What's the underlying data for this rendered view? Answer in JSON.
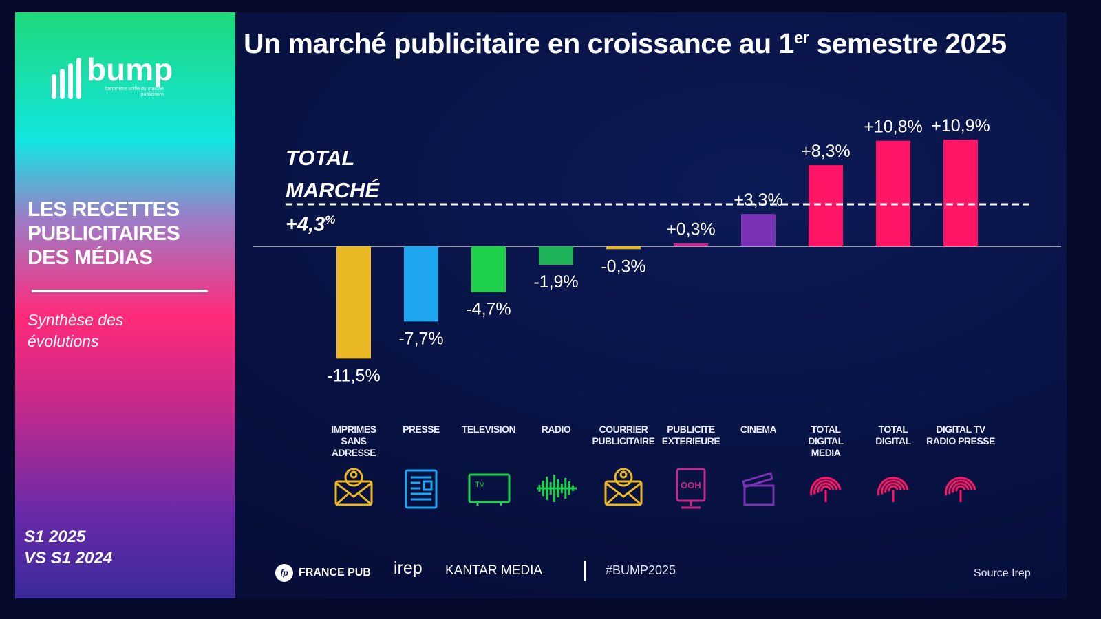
{
  "sidebar": {
    "logo_text": "bump",
    "logo_tagline": "baromètre unifié du marché publicitaire",
    "title_lines": [
      "LES RECETTES",
      "PUBLICITAIRES",
      "DES MÉDIAS"
    ],
    "subtitle": "Synthèse des évolutions",
    "period_lines": [
      "S1 2025",
      "VS S1 2024"
    ]
  },
  "title": {
    "main": "Un marché publicitaire en croissance au 1",
    "sup": "er",
    "end": " semestre 2025"
  },
  "total": {
    "label_lines": [
      "TOTAL",
      "MARCHÉ"
    ],
    "value": "+4,3",
    "unit": "%"
  },
  "chart_data": {
    "type": "bar",
    "categories": [
      "IMPRIMES SANS ADRESSE",
      "PRESSE",
      "TELEVISION",
      "RADIO",
      "COURRIER PUBLICITAIRE",
      "PUBLICITE EXTERIEURE",
      "CINEMA",
      "TOTAL DIGITAL MEDIA",
      "TOTAL DIGITAL",
      "DIGITAL TV RADIO PRESSE"
    ],
    "category_lines": [
      [
        "IMPRIMES",
        "SANS",
        "ADRESSE"
      ],
      [
        "PRESSE"
      ],
      [
        "TELEVISION"
      ],
      [
        "RADIO"
      ],
      [
        "COURRIER",
        "PUBLICITAIRE"
      ],
      [
        "PUBLICITE",
        "EXTERIEURE"
      ],
      [
        "CINEMA"
      ],
      [
        "TOTAL",
        "DIGITAL",
        "MEDIA"
      ],
      [
        "TOTAL",
        "DIGITAL"
      ],
      [
        "DIGITAL TV",
        "RADIO PRESSE"
      ]
    ],
    "values": [
      -11.5,
      -7.7,
      -4.7,
      -1.9,
      -0.3,
      0.3,
      3.3,
      8.3,
      10.8,
      10.9
    ],
    "data_labels": [
      "-11,5%",
      "-7,7%",
      "-4,7%",
      "-1,9%",
      "-0,3%",
      "+0,3%",
      "+3,3%",
      "+8,3%",
      "+10,8%",
      "+10,9%"
    ],
    "colors": [
      "#e9b824",
      "#1ea7f0",
      "#1fd14a",
      "#1fb35a",
      "#e9b824",
      "#c4288a",
      "#7a33b4",
      "#ff1566",
      "#ff1566",
      "#ff1566"
    ],
    "icons": [
      "mail-icon",
      "newspaper-icon",
      "tv-icon",
      "radio-wave-icon",
      "mail-icon",
      "ooh-billboard-icon",
      "clapperboard-icon",
      "fingerprint-icon",
      "fingerprint-icon",
      "fingerprint-icon"
    ],
    "reference_line": {
      "value": 4.3,
      "style": "dashed"
    },
    "unit": "%"
  },
  "footer": {
    "partners": [
      "FRANCE PUB",
      "irep",
      "KANTAR MEDIA"
    ],
    "hashtag": "#BUMP2025",
    "source": "Source Irep"
  }
}
